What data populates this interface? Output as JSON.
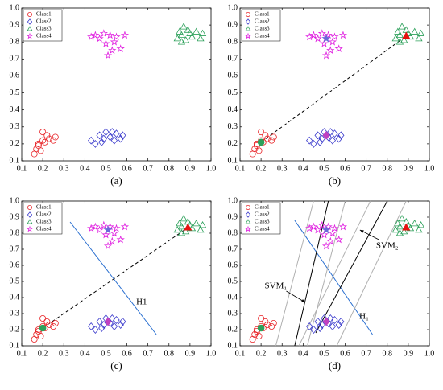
{
  "chart_data": [
    {
      "type": "scatter",
      "caption": "(a)",
      "xlim": [
        0.1,
        1
      ],
      "ylim": [
        0.1,
        1
      ],
      "xticks": [
        0.1,
        0.2,
        0.3,
        0.4,
        0.5,
        0.6,
        0.7,
        0.8,
        0.9,
        {
          "value": 1,
          "label": "1.0"
        }
      ],
      "yticks": [
        0.1,
        0.2,
        0.3,
        0.4,
        0.5,
        0.6,
        0.7,
        0.8,
        0.9,
        {
          "value": 1,
          "label": "1.0"
        }
      ],
      "legend": "upper left",
      "series": [
        {
          "name": "Class1",
          "color": "#e8262a",
          "marker": "circle",
          "x": [
            0.16,
            0.17,
            0.18,
            0.19,
            0.2,
            0.21,
            0.22,
            0.23,
            0.25,
            0.26,
            0.2,
            0.18
          ],
          "y": [
            0.14,
            0.17,
            0.19,
            0.16,
            0.22,
            0.21,
            0.25,
            0.23,
            0.22,
            0.24,
            0.27,
            0.2
          ]
        },
        {
          "name": "Class2",
          "color": "#3a3acc",
          "marker": "diamond",
          "x": [
            0.43,
            0.45,
            0.47,
            0.49,
            0.5,
            0.52,
            0.54,
            0.55,
            0.57,
            0.58,
            0.48,
            0.53
          ],
          "y": [
            0.22,
            0.2,
            0.25,
            0.23,
            0.27,
            0.24,
            0.22,
            0.26,
            0.23,
            0.25,
            0.21,
            0.27
          ]
        },
        {
          "name": "Class3",
          "color": "#2ca05a",
          "marker": "triangle",
          "x": [
            0.84,
            0.85,
            0.86,
            0.87,
            0.88,
            0.9,
            0.91,
            0.93,
            0.95,
            0.96,
            0.86,
            0.89
          ],
          "y": [
            0.82,
            0.86,
            0.84,
            0.89,
            0.81,
            0.85,
            0.83,
            0.86,
            0.82,
            0.85,
            0.8,
            0.87
          ]
        },
        {
          "name": "Class4",
          "color": "#e020e0",
          "marker": "star",
          "x": [
            0.43,
            0.45,
            0.47,
            0.49,
            0.5,
            0.52,
            0.53,
            0.55,
            0.57,
            0.59,
            0.51,
            0.54
          ],
          "y": [
            0.83,
            0.84,
            0.82,
            0.85,
            0.79,
            0.84,
            0.75,
            0.83,
            0.76,
            0.84,
            0.72,
            0.8
          ]
        }
      ]
    },
    {
      "type": "scatter",
      "caption": "(b)",
      "xlim": [
        0.1,
        1
      ],
      "ylim": [
        0.1,
        1
      ],
      "xticks": [
        0.1,
        0.2,
        0.3,
        0.4,
        0.5,
        0.6,
        0.7,
        0.8,
        0.9,
        {
          "value": 1,
          "label": "1.0"
        }
      ],
      "yticks": [
        0.1,
        0.2,
        0.3,
        0.4,
        0.5,
        0.6,
        0.7,
        0.8,
        0.9,
        {
          "value": 1,
          "label": "1.0"
        }
      ],
      "legend": "upper left",
      "series": [
        {
          "name": "Class1",
          "color": "#e8262a",
          "marker": "circle",
          "x": [
            0.16,
            0.17,
            0.18,
            0.19,
            0.2,
            0.21,
            0.22,
            0.23,
            0.25,
            0.26,
            0.2,
            0.18
          ],
          "y": [
            0.14,
            0.17,
            0.19,
            0.16,
            0.22,
            0.21,
            0.25,
            0.23,
            0.22,
            0.24,
            0.27,
            0.2
          ]
        },
        {
          "name": "Class2",
          "color": "#3a3acc",
          "marker": "diamond",
          "x": [
            0.43,
            0.45,
            0.47,
            0.49,
            0.5,
            0.52,
            0.54,
            0.55,
            0.57,
            0.58,
            0.48,
            0.53
          ],
          "y": [
            0.22,
            0.2,
            0.25,
            0.23,
            0.27,
            0.24,
            0.22,
            0.26,
            0.23,
            0.25,
            0.21,
            0.27
          ]
        },
        {
          "name": "Class3",
          "color": "#2ca05a",
          "marker": "triangle",
          "x": [
            0.84,
            0.85,
            0.86,
            0.87,
            0.88,
            0.9,
            0.91,
            0.93,
            0.95,
            0.96,
            0.86,
            0.89
          ],
          "y": [
            0.82,
            0.86,
            0.84,
            0.89,
            0.81,
            0.85,
            0.83,
            0.86,
            0.82,
            0.85,
            0.8,
            0.87
          ]
        },
        {
          "name": "Class4",
          "color": "#e020e0",
          "marker": "star",
          "x": [
            0.43,
            0.45,
            0.47,
            0.49,
            0.5,
            0.52,
            0.53,
            0.55,
            0.57,
            0.59,
            0.51,
            0.54
          ],
          "y": [
            0.83,
            0.84,
            0.82,
            0.85,
            0.79,
            0.84,
            0.75,
            0.83,
            0.76,
            0.84,
            0.72,
            0.8
          ]
        }
      ],
      "centers": {
        "x": [
          0.2,
          0.51,
          0.89,
          0.51
        ],
        "y": [
          0.21,
          0.25,
          0.835,
          0.82
        ],
        "colors": [
          "#2ca05a",
          "#c040c0",
          "#e81010",
          "#6a6ad8"
        ],
        "markers": [
          "circle",
          "diamond",
          "triangle",
          "star"
        ]
      },
      "lines": [
        {
          "color": "#000000",
          "dash": true,
          "x": [
            0.2,
            0.89
          ],
          "y": [
            0.21,
            0.835
          ]
        }
      ]
    },
    {
      "type": "scatter",
      "caption": "(c)",
      "xlim": [
        0.1,
        1
      ],
      "ylim": [
        0.1,
        1
      ],
      "xticks": [
        0.1,
        0.2,
        0.3,
        0.4,
        0.5,
        0.6,
        0.7,
        0.8,
        0.9,
        {
          "value": 1,
          "label": "1.0"
        }
      ],
      "yticks": [
        0.1,
        0.2,
        0.3,
        0.4,
        0.5,
        0.6,
        0.7,
        0.8,
        0.9,
        {
          "value": 1,
          "label": "1.0"
        }
      ],
      "legend": "upper left",
      "series": [
        {
          "name": "Class1",
          "color": "#e8262a",
          "marker": "circle",
          "x": [
            0.16,
            0.17,
            0.18,
            0.19,
            0.2,
            0.21,
            0.22,
            0.23,
            0.25,
            0.26,
            0.2,
            0.18
          ],
          "y": [
            0.14,
            0.17,
            0.19,
            0.16,
            0.22,
            0.21,
            0.25,
            0.23,
            0.22,
            0.24,
            0.27,
            0.2
          ]
        },
        {
          "name": "Class2",
          "color": "#3a3acc",
          "marker": "diamond",
          "x": [
            0.43,
            0.45,
            0.47,
            0.49,
            0.5,
            0.52,
            0.54,
            0.55,
            0.57,
            0.58,
            0.48,
            0.53
          ],
          "y": [
            0.22,
            0.2,
            0.25,
            0.23,
            0.27,
            0.24,
            0.22,
            0.26,
            0.23,
            0.25,
            0.21,
            0.27
          ]
        },
        {
          "name": "Class3",
          "color": "#2ca05a",
          "marker": "triangle",
          "x": [
            0.84,
            0.85,
            0.86,
            0.87,
            0.88,
            0.9,
            0.91,
            0.93,
            0.95,
            0.96,
            0.86,
            0.89
          ],
          "y": [
            0.82,
            0.86,
            0.84,
            0.89,
            0.81,
            0.85,
            0.83,
            0.86,
            0.82,
            0.85,
            0.8,
            0.87
          ]
        },
        {
          "name": "Class4",
          "color": "#e020e0",
          "marker": "star",
          "x": [
            0.43,
            0.45,
            0.47,
            0.49,
            0.5,
            0.52,
            0.53,
            0.55,
            0.57,
            0.59,
            0.51,
            0.54
          ],
          "y": [
            0.83,
            0.84,
            0.82,
            0.85,
            0.79,
            0.84,
            0.75,
            0.83,
            0.76,
            0.84,
            0.72,
            0.8
          ]
        }
      ],
      "centers": {
        "x": [
          0.2,
          0.51,
          0.89,
          0.51
        ],
        "y": [
          0.21,
          0.25,
          0.835,
          0.82
        ],
        "colors": [
          "#2ca05a",
          "#c040c0",
          "#e81010",
          "#6a6ad8"
        ],
        "markers": [
          "circle",
          "diamond",
          "triangle",
          "star"
        ]
      },
      "lines": [
        {
          "color": "#000000",
          "dash": true,
          "x": [
            0.2,
            0.89
          ],
          "y": [
            0.21,
            0.835
          ]
        },
        {
          "color": "#2a6fd0",
          "dash": false,
          "x": [
            0.33,
            0.74
          ],
          "y": [
            0.87,
            0.17
          ]
        }
      ],
      "annotations": [
        "H1"
      ]
    },
    {
      "type": "scatter",
      "caption": "(d)",
      "xlim": [
        0.1,
        1
      ],
      "ylim": [
        0.1,
        1
      ],
      "xticks": [
        0.1,
        0.2,
        0.3,
        0.4,
        0.5,
        0.6,
        0.7,
        0.8,
        0.9,
        {
          "value": 1,
          "label": "1.0"
        }
      ],
      "yticks": [
        0.1,
        0.2,
        0.3,
        0.4,
        0.5,
        0.6,
        0.7,
        0.8,
        0.9,
        {
          "value": 1,
          "label": "1.0"
        }
      ],
      "legend": "upper left",
      "series": [
        {
          "name": "Class1",
          "color": "#e8262a",
          "marker": "circle",
          "x": [
            0.16,
            0.17,
            0.18,
            0.19,
            0.2,
            0.21,
            0.22,
            0.23,
            0.25,
            0.26,
            0.2,
            0.18
          ],
          "y": [
            0.14,
            0.17,
            0.19,
            0.16,
            0.22,
            0.21,
            0.25,
            0.23,
            0.22,
            0.24,
            0.27,
            0.2
          ]
        },
        {
          "name": "Class2",
          "color": "#3a3acc",
          "marker": "diamond",
          "x": [
            0.43,
            0.45,
            0.47,
            0.49,
            0.5,
            0.52,
            0.54,
            0.55,
            0.57,
            0.58,
            0.48,
            0.53
          ],
          "y": [
            0.22,
            0.2,
            0.25,
            0.23,
            0.27,
            0.24,
            0.22,
            0.26,
            0.23,
            0.25,
            0.21,
            0.27
          ]
        },
        {
          "name": "Class3",
          "color": "#2ca05a",
          "marker": "triangle",
          "x": [
            0.84,
            0.85,
            0.86,
            0.87,
            0.88,
            0.9,
            0.91,
            0.93,
            0.95,
            0.96,
            0.86,
            0.89
          ],
          "y": [
            0.82,
            0.86,
            0.84,
            0.89,
            0.81,
            0.85,
            0.83,
            0.86,
            0.82,
            0.85,
            0.8,
            0.87
          ]
        },
        {
          "name": "Class4",
          "color": "#e020e0",
          "marker": "star",
          "x": [
            0.43,
            0.45,
            0.47,
            0.49,
            0.5,
            0.52,
            0.53,
            0.55,
            0.57,
            0.59,
            0.51,
            0.54
          ],
          "y": [
            0.83,
            0.84,
            0.82,
            0.85,
            0.79,
            0.84,
            0.75,
            0.83,
            0.76,
            0.84,
            0.72,
            0.8
          ]
        }
      ],
      "centers": {
        "x": [
          0.2,
          0.51,
          0.89,
          0.51
        ],
        "y": [
          0.21,
          0.25,
          0.835,
          0.82
        ],
        "colors": [
          "#2ca05a",
          "#c040c0",
          "#e81010",
          "#6a6ad8"
        ],
        "markers": [
          "circle",
          "diamond",
          "triangle",
          "star"
        ]
      },
      "lines": [
        {
          "color": "#2a6fd0",
          "dash": false,
          "x": [
            0.36,
            0.73
          ],
          "y": [
            0.88,
            0.17
          ]
        },
        {
          "color": "#000000",
          "dash": false,
          "x": [
            0.36,
            0.52
          ],
          "y": [
            0.1,
            1
          ]
        },
        {
          "color": "#b0b0b0",
          "dash": false,
          "x": [
            0.27,
            0.45
          ],
          "y": [
            0.1,
            1
          ]
        },
        {
          "color": "#b0b0b0",
          "dash": false,
          "x": [
            0.42,
            0.6
          ],
          "y": [
            0.1,
            1
          ]
        },
        {
          "color": "#000000",
          "dash": false,
          "x": [
            0.46,
            0.8
          ],
          "y": [
            0.18,
            1
          ]
        },
        {
          "color": "#b0b0b0",
          "dash": false,
          "x": [
            0.38,
            0.72
          ],
          "y": [
            0.1,
            1
          ]
        },
        {
          "color": "#b0b0b0",
          "dash": false,
          "x": [
            0.56,
            0.89
          ],
          "y": [
            0.1,
            1
          ]
        }
      ],
      "annotations": [
        "SVM₁",
        "SVM₂",
        "H₁"
      ]
    }
  ]
}
